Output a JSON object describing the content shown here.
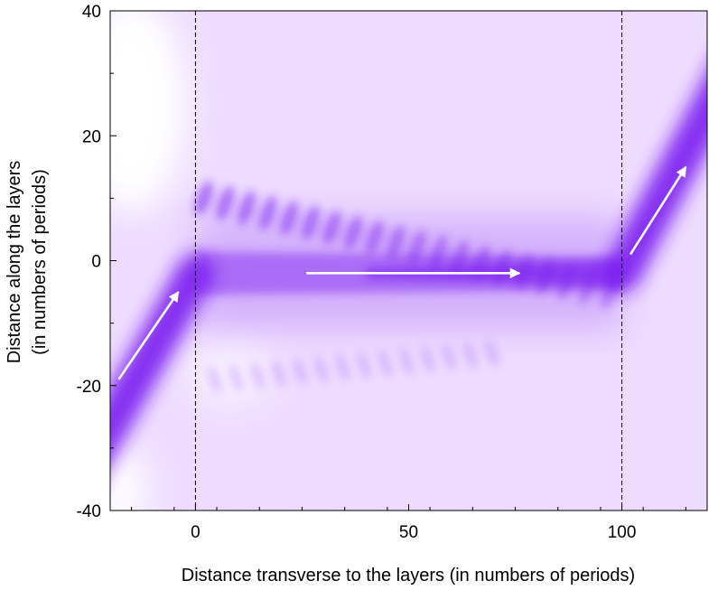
{
  "chart_data": {
    "type": "heatmap",
    "title": "",
    "xlabel": "Distance transverse to the layers (in numbers of periods)",
    "ylabel_line1": "Distance along the layers",
    "ylabel_line2": "(in numbers of periods)",
    "xlim": [
      -20,
      120
    ],
    "ylim": [
      -40,
      40
    ],
    "x_ticks": [
      0,
      50,
      100
    ],
    "x_tick_labels": [
      "0",
      "50",
      "100"
    ],
    "y_ticks": [
      -40,
      -20,
      0,
      20,
      40
    ],
    "y_tick_labels": [
      "-40",
      "-20",
      "0",
      "20",
      "40"
    ],
    "grid": false,
    "colormap": {
      "low": "#ffffff",
      "background": "#eedcff",
      "high": "#7a1ff0"
    },
    "boundaries": [
      0,
      100
    ],
    "beam_centerline": [
      {
        "x": -20,
        "y": -26
      },
      {
        "x": 0,
        "y": -2
      },
      {
        "x": 100,
        "y": -2
      },
      {
        "x": 120,
        "y": 24
      }
    ],
    "arrows": [
      {
        "from": [
          -18,
          -19
        ],
        "to": [
          -4,
          -5
        ]
      },
      {
        "from": [
          26,
          -2
        ],
        "to": [
          76,
          -2
        ]
      },
      {
        "from": [
          102,
          1
        ],
        "to": [
          115,
          15
        ]
      }
    ]
  }
}
